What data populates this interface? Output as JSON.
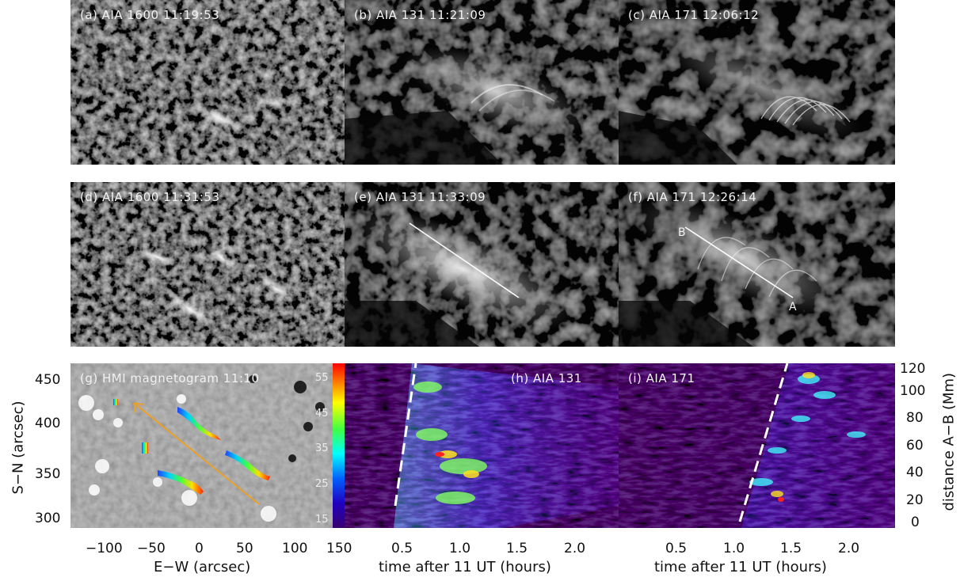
{
  "panels": {
    "a": {
      "label": "(a) AIA 1600 11:19:53"
    },
    "b": {
      "label": "(b) AIA 131 11:21:09"
    },
    "c": {
      "label": "(c) AIA 171 12:06:12"
    },
    "d": {
      "label": "(d) AIA 1600 11:31:53"
    },
    "e": {
      "label": "(e) AIA 131 11:33:09"
    },
    "f": {
      "label": "(f) AIA 171 12:26:14",
      "point_a": "A",
      "point_b": "B"
    },
    "g": {
      "label": "(g) HMI magnetogram 11:10"
    },
    "h": {
      "label": "(h) AIA 131"
    },
    "i": {
      "label": "(i) AIA 171"
    }
  },
  "colorbar": {
    "ticks": [
      "55",
      "45",
      "35",
      "25",
      "15"
    ]
  },
  "axes": {
    "g_x_title": "E−W (arcsec)",
    "g_y_title": "S−N (arcsec)",
    "g_x_ticks": [
      "−100",
      "−50",
      "0",
      "50",
      "100",
      "150"
    ],
    "g_y_ticks": [
      "450",
      "400",
      "350",
      "300"
    ],
    "time_title_h": "time after 11 UT (hours)",
    "time_title_i": "time after 11 UT (hours)",
    "h_x_ticks": [
      "0.5",
      "1.0",
      "1.5",
      "2.0"
    ],
    "i_x_ticks": [
      "0.5",
      "1.0",
      "1.5",
      "2.0"
    ],
    "right_y_title": "distance A−B (Mm)",
    "right_y_ticks": [
      "120",
      "100",
      "80",
      "60",
      "40",
      "20",
      "0"
    ]
  },
  "colors": {
    "arrow": "#f0a020",
    "spectral_bg": "#14001e",
    "spectral_mid": "#3a0a8a"
  }
}
